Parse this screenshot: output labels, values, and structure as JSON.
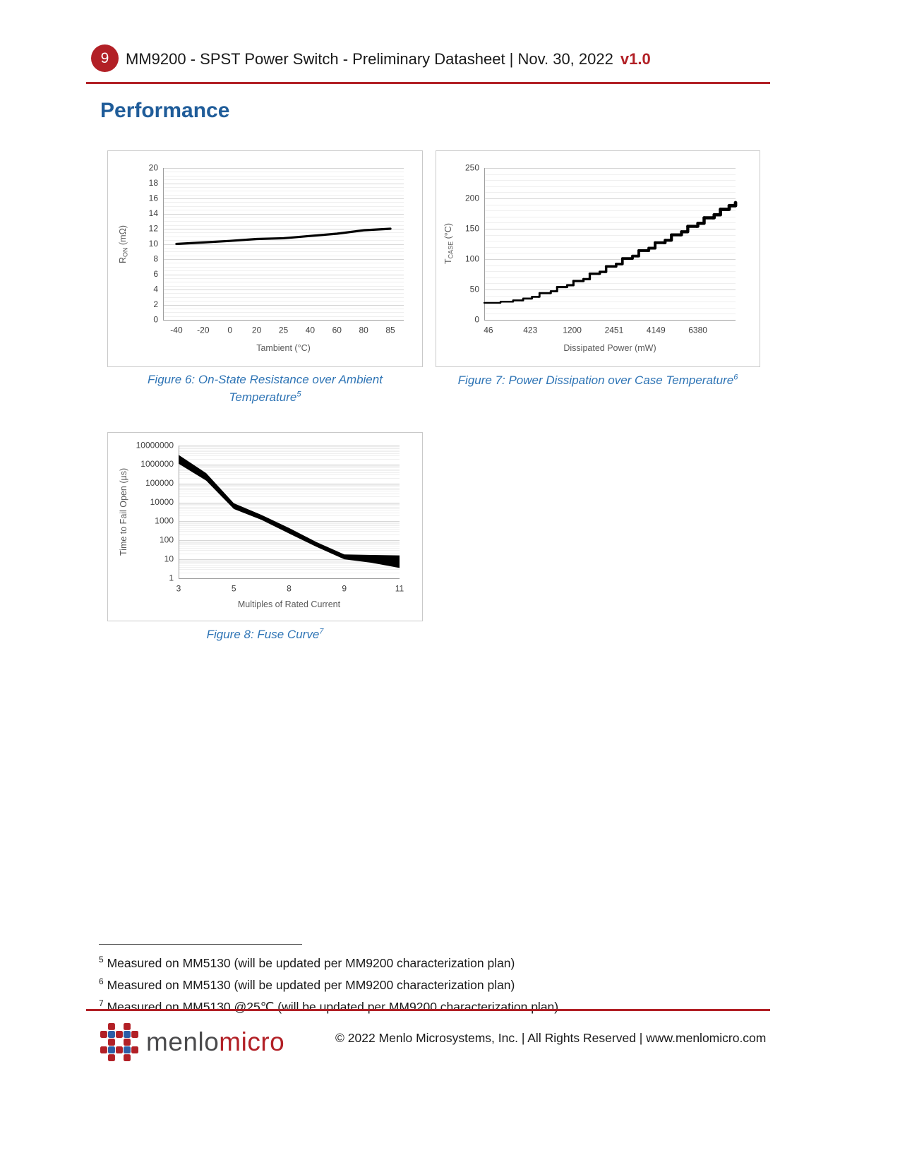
{
  "header": {
    "page_number": "9",
    "title": "MM9200 - SPST Power Switch - Preliminary Datasheet | Nov. 30, 2022",
    "version": "v1.0"
  },
  "section_title": "Performance",
  "figures": [
    {
      "caption": "Figure 6: On-State Resistance over Ambient Temperature",
      "sup": "5"
    },
    {
      "caption": "Figure 7: Power Dissipation over Case Temperature",
      "sup": "6"
    },
    {
      "caption": "Figure 8: Fuse Curve",
      "sup": "7"
    }
  ],
  "chart_data": [
    {
      "type": "line",
      "title": "On-State Resistance over Ambient Temperature",
      "xlabel": "Tambient (°C)",
      "ylabel": "RON (mΩ)",
      "ylabel_parts": {
        "main": "R",
        "sub": "ON",
        "rest": " (mΩ)"
      },
      "categories": [
        "-40",
        "-20",
        "0",
        "20",
        "25",
        "40",
        "60",
        "80",
        "85"
      ],
      "values": [
        10,
        10.2,
        10.4,
        10.65,
        10.75,
        11.05,
        11.35,
        11.8,
        12
      ],
      "ylim": [
        0,
        20
      ],
      "ytick_step": 2,
      "minor_step": 0.5,
      "xmode": "center",
      "grid": true,
      "legend": "none"
    },
    {
      "type": "step",
      "title": "Power Dissipation over Case Temperature",
      "xlabel": "Dissipated Power (mW)",
      "ylabel": "TCASE (°C)",
      "ylabel_parts": {
        "main": "T",
        "sub": "CASE",
        "rest": " (°C)"
      },
      "categories": [
        "46",
        "423",
        "1200",
        "2451",
        "4149",
        "6380"
      ],
      "points": [
        [
          0,
          28
        ],
        [
          0.06,
          28
        ],
        [
          0.065,
          30
        ],
        [
          0.11,
          30
        ],
        [
          0.115,
          32
        ],
        [
          0.15,
          32
        ],
        [
          0.155,
          35
        ],
        [
          0.185,
          35
        ],
        [
          0.19,
          38
        ],
        [
          0.215,
          38
        ],
        [
          0.22,
          44
        ],
        [
          0.26,
          44
        ],
        [
          0.265,
          47
        ],
        [
          0.285,
          47
        ],
        [
          0.29,
          54
        ],
        [
          0.325,
          54
        ],
        [
          0.33,
          57
        ],
        [
          0.35,
          57
        ],
        [
          0.355,
          64
        ],
        [
          0.39,
          64
        ],
        [
          0.395,
          67
        ],
        [
          0.415,
          67
        ],
        [
          0.42,
          76
        ],
        [
          0.455,
          76
        ],
        [
          0.46,
          79
        ],
        [
          0.48,
          79
        ],
        [
          0.485,
          88
        ],
        [
          0.52,
          88
        ],
        [
          0.525,
          92
        ],
        [
          0.545,
          92
        ],
        [
          0.55,
          101
        ],
        [
          0.585,
          101
        ],
        [
          0.59,
          105
        ],
        [
          0.61,
          105
        ],
        [
          0.615,
          114
        ],
        [
          0.65,
          114
        ],
        [
          0.655,
          118
        ],
        [
          0.675,
          118
        ],
        [
          0.68,
          127
        ],
        [
          0.715,
          127
        ],
        [
          0.72,
          131
        ],
        [
          0.74,
          131
        ],
        [
          0.745,
          140
        ],
        [
          0.78,
          140
        ],
        [
          0.785,
          145
        ],
        [
          0.805,
          145
        ],
        [
          0.81,
          154
        ],
        [
          0.845,
          154
        ],
        [
          0.85,
          159
        ],
        [
          0.87,
          159
        ],
        [
          0.875,
          168
        ],
        [
          0.91,
          168
        ],
        [
          0.915,
          173
        ],
        [
          0.935,
          173
        ],
        [
          0.94,
          182
        ],
        [
          0.97,
          182
        ],
        [
          0.975,
          188
        ],
        [
          1,
          193
        ]
      ],
      "ylim": [
        0,
        250
      ],
      "ytick_step": 50,
      "minor_step": 10,
      "xmode": "left",
      "grid": true,
      "legend": "none"
    },
    {
      "type": "band",
      "title": "Fuse Curve",
      "xlabel": "Multiples of Rated Current",
      "ylabel": "Time to Fail Open (µs)",
      "ylabel_parts": {
        "main": "Time to Fail Open (µs)",
        "sub": "",
        "rest": ""
      },
      "categories": [
        "3",
        "5",
        "8",
        "9",
        "11"
      ],
      "yscale": "log",
      "ylim": [
        1,
        10000000
      ],
      "band": {
        "t": [
          0,
          0.125,
          0.25,
          0.375,
          0.5,
          0.625,
          0.75,
          0.875,
          1
        ],
        "upper": [
          3200000,
          350000,
          9000,
          2200,
          450,
          80,
          18,
          17,
          16
        ],
        "lower": [
          1100000,
          140000,
          4500,
          1200,
          230,
          45,
          10,
          6.5,
          3.5
        ]
      },
      "xmode": "edge",
      "grid": true,
      "legend": "none"
    }
  ],
  "footnotes": [
    {
      "ref": "5",
      "text": "Measured on MM5130 (will be updated per MM9200 characterization plan)"
    },
    {
      "ref": "6",
      "text": "Measured on MM5130 (will be updated per MM9200 characterization plan)"
    },
    {
      "ref": "7",
      "text": "Measured on MM5130 @25℃ (will be updated per MM9200 characterization plan)"
    }
  ],
  "footer": {
    "logo_text_1": "menlo",
    "logo_text_2": "micro",
    "copyright": "© 2022 Menlo Microsystems, Inc. | All Rights Reserved | www.menlomicro.com"
  },
  "theme": {
    "brand_red": "#b22026",
    "logo_blue": "#2b5ea7",
    "heading_blue": "#1f5c99",
    "caption_blue": "#2e74b5",
    "grid_major": "#d6d6d6",
    "grid_minor": "#efefef",
    "axis_line": "#9f9f9f",
    "series_black": "#000000"
  }
}
